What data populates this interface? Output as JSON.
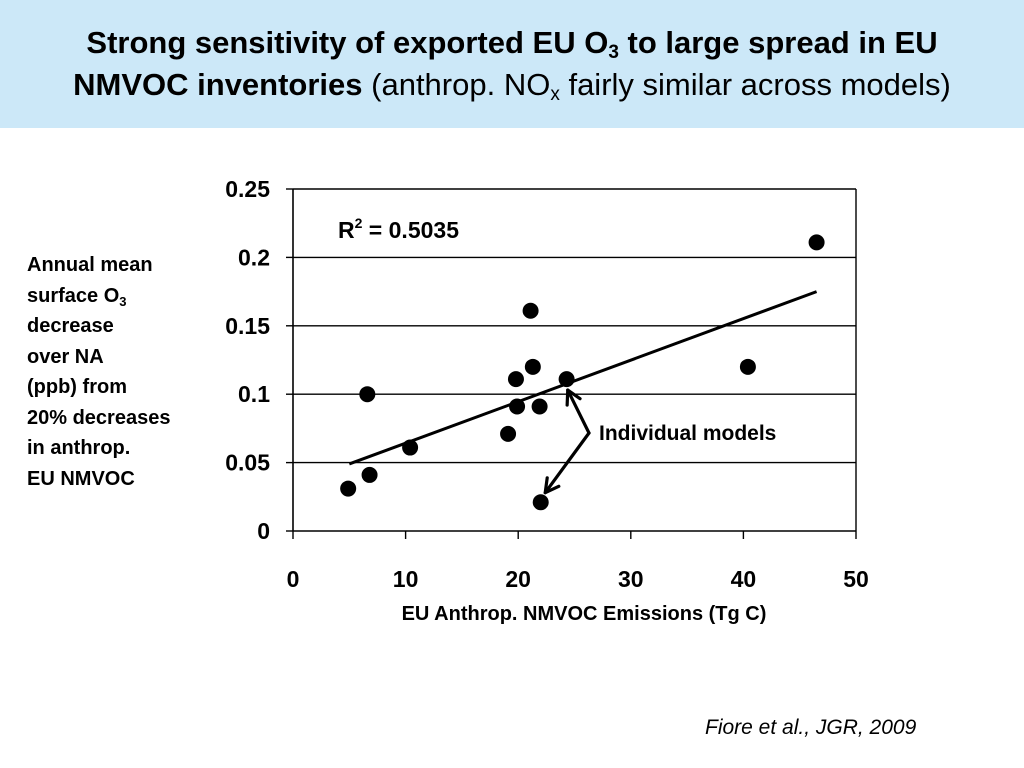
{
  "title": {
    "line1_bold": "Strong sensitivity of exported EU O",
    "line1_sub": "3",
    "line1_bold_tail": " to large spread in EU",
    "line2_bold": "NMVOC inventories",
    "line2_normal_a": " (anthrop. NO",
    "line2_sub": "x",
    "line2_normal_b": " fairly similar across models)"
  },
  "ylabel": {
    "line1": "Annual mean",
    "line2a": "surface O",
    "line2sub": "3",
    "line3": "decrease",
    "line4": "over NA",
    "line5": "(ppb) from",
    "line6": "20% decreases",
    "line7": "in anthrop.",
    "line8": "EU NMVOC"
  },
  "citation": "Fiore et al., JGR, 2009",
  "colors": {
    "title_background": "#cce8f8",
    "marker": "#000000",
    "trendline": "#000000",
    "gridline": "#000000"
  },
  "chart_data": {
    "type": "scatter",
    "xlabel": "EU Anthrop. NMVOC Emissions (Tg C)",
    "ylabel": "Annual mean surface O3 decrease over NA (ppb) from 20% decreases in anthrop. EU NMVOC",
    "xlim": [
      0,
      50
    ],
    "ylim": [
      0,
      0.25
    ],
    "x_ticks": [
      "0",
      "10",
      "20",
      "30",
      "40",
      "50"
    ],
    "y_ticks": [
      "0",
      "0.05",
      "0.1",
      "0.15",
      "0.2",
      "0.25"
    ],
    "grid": "horizontal",
    "points": [
      {
        "x": 4.9,
        "y": 0.031
      },
      {
        "x": 6.6,
        "y": 0.1
      },
      {
        "x": 6.8,
        "y": 0.041
      },
      {
        "x": 10.4,
        "y": 0.061
      },
      {
        "x": 19.1,
        "y": 0.071
      },
      {
        "x": 19.8,
        "y": 0.111
      },
      {
        "x": 19.9,
        "y": 0.091
      },
      {
        "x": 21.1,
        "y": 0.161
      },
      {
        "x": 21.3,
        "y": 0.12
      },
      {
        "x": 21.9,
        "y": 0.091
      },
      {
        "x": 22.0,
        "y": 0.021
      },
      {
        "x": 24.3,
        "y": 0.111
      },
      {
        "x": 40.4,
        "y": 0.12
      },
      {
        "x": 46.5,
        "y": 0.211
      }
    ],
    "trendline": {
      "x": [
        5,
        46.5
      ],
      "y": [
        0.049,
        0.175
      ]
    },
    "r_squared": {
      "label": "R",
      "sup": "2",
      "value": " = 0.5035"
    },
    "annotation": {
      "text": "Individual models",
      "targets": [
        {
          "x": 24.4,
          "y": 0.103
        },
        {
          "x": 22.4,
          "y": 0.028
        }
      ]
    }
  }
}
